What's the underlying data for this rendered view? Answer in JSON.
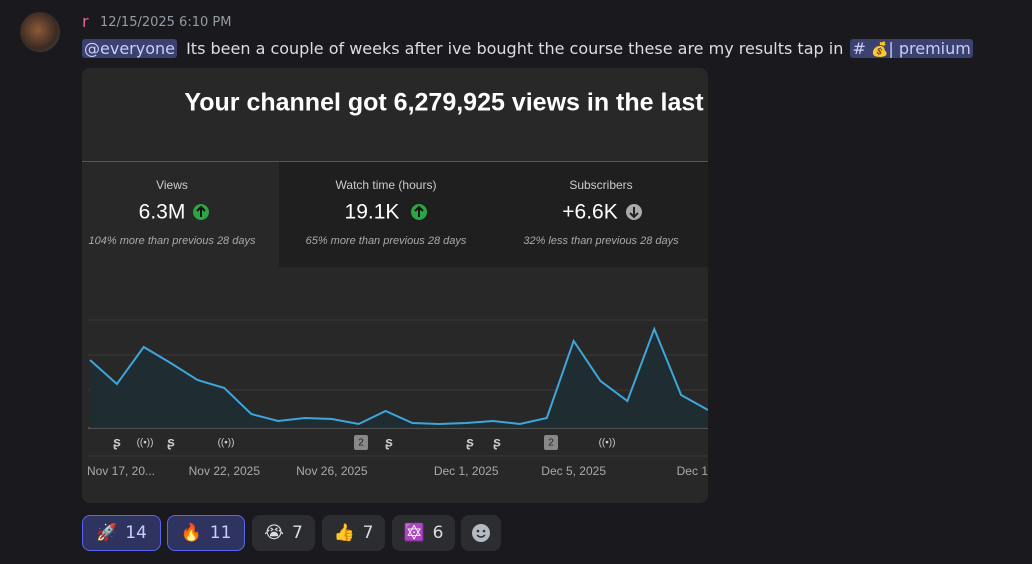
{
  "message": {
    "author": "r",
    "timestamp": "12/15/2025 6:10 PM",
    "mention": "@everyone",
    "text": "Its been a couple of weeks after ive bought the course these are my results tap in",
    "channel_hash": "#",
    "channel_emoji": "💰",
    "channel_name": "| premium"
  },
  "embed": {
    "title": "Your channel got 6,279,925 views in the last",
    "stats": [
      {
        "label": "Views",
        "value": "6.3M",
        "note": "104% more than previous 28 days"
      },
      {
        "label": "Watch time (hours)",
        "value": "19.1K",
        "note": "65% more than previous 28 days"
      },
      {
        "label": "Subscribers",
        "value": "+6.6K",
        "note": "32% less than previous 28 days"
      }
    ],
    "badges": [
      "2",
      "2"
    ]
  },
  "chart_data": {
    "type": "line",
    "categories": [
      "Nov 17, 20...",
      null,
      null,
      null,
      null,
      "Nov 22, 2025",
      null,
      null,
      null,
      "Nov 26, 2025",
      null,
      null,
      null,
      null,
      "Dec 1, 2025",
      null,
      null,
      null,
      "Dec 5, 2025",
      null,
      null,
      null,
      "Dec 1",
      null
    ],
    "values": [
      68,
      44,
      81,
      65,
      48,
      40,
      14,
      7,
      10,
      9,
      4,
      17,
      5,
      4,
      5,
      7,
      4,
      10,
      87,
      47,
      27,
      99,
      33,
      18
    ],
    "ylim": [
      0,
      108
    ],
    "color": "#3ea6d8"
  },
  "reactions": [
    {
      "emoji": "🚀",
      "count": "14"
    },
    {
      "emoji": "🔥",
      "count": "11"
    },
    {
      "emoji": "😭",
      "count": "7"
    },
    {
      "emoji": "👍",
      "count": "7"
    },
    {
      "emoji": "🔯",
      "count": "6"
    }
  ]
}
